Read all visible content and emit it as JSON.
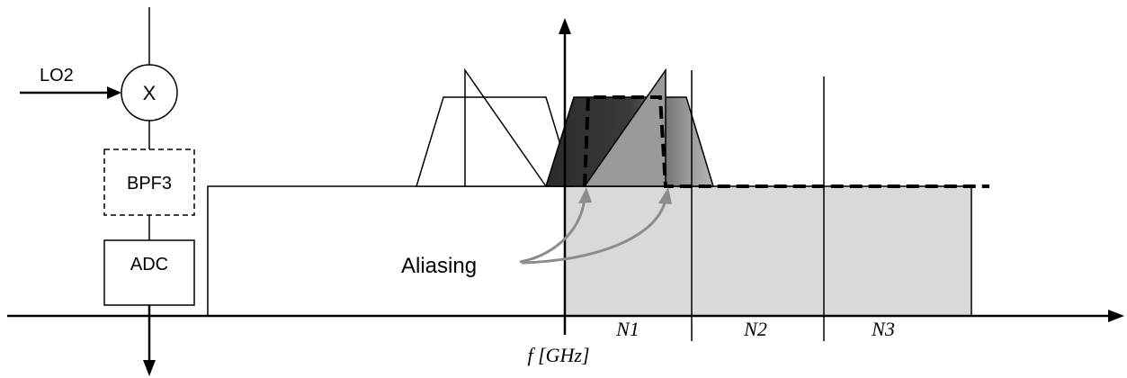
{
  "blocks": {
    "mixer_symbol": "X",
    "lo_label": "LO2",
    "filter_label": "BPF3",
    "adc_label": "ADC"
  },
  "labels": {
    "aliasing": "Aliasing",
    "freq_axis": "f [GHz]",
    "zones": [
      "N1",
      "N2",
      "N3"
    ]
  },
  "colors": {
    "stroke": "#000000",
    "zone_fill": "#d9d9d9",
    "signal_dark": "#333333",
    "signal_mid": "#8a8a8a",
    "arrow_gray": "#8c8c8c"
  }
}
